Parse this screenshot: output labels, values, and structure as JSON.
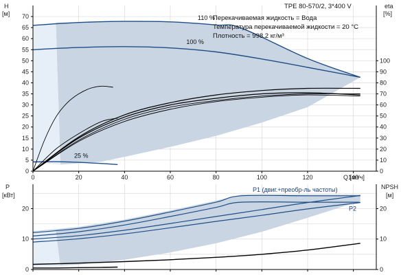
{
  "header": {
    "model": "TPE 80-570/2, 3*400 V",
    "info": [
      "Перекачиваемая жидкость = Вода",
      "Температура перекачиваемой жидкости = 20 °C",
      "Плотность = 998.2 кг/м³"
    ]
  },
  "colors": {
    "envelope": "#c9d5e3",
    "envelope_light": "#e6eef8",
    "pump_curve": "#1f4e86",
    "system_curve": "#000000",
    "grid": "#d9d9d9"
  },
  "chart_data": [
    {
      "type": "line",
      "title": "",
      "xlabel": "Q [м³/ч]",
      "ylabel_left": [
        "H",
        "[м]"
      ],
      "ylabel_right": [
        "eta",
        "[%]"
      ],
      "xlim": [
        0,
        150
      ],
      "ylim": [
        0,
        75
      ],
      "y2lim": [
        0,
        150
      ],
      "grid": true,
      "x_ticks": [
        "0",
        "20",
        "40",
        "60",
        "80",
        "100",
        "120",
        "140"
      ],
      "y_ticks": [
        "0",
        "5",
        "10",
        "15",
        "20",
        "25",
        "30",
        "35",
        "40",
        "45",
        "50",
        "55",
        "60",
        "65",
        "70"
      ],
      "y2_ticks": [
        "0",
        "10",
        "20",
        "30",
        "40",
        "50",
        "60",
        "70",
        "80",
        "90",
        "100"
      ],
      "annotations": [
        {
          "text": "110 %",
          "x": 72,
          "y": 68.5
        },
        {
          "text": "100 %",
          "x": 67,
          "y": 57.5
        },
        {
          "text": "25 %",
          "x": 18,
          "y": 6
        }
      ],
      "series": [
        {
          "role": "pump_curve",
          "x": [
            0,
            20,
            40,
            60,
            80,
            91,
            120,
            143
          ],
          "y": [
            66,
            67.3,
            67.8,
            67.6,
            66.2,
            64.8,
            51,
            42.5
          ]
        },
        {
          "role": "pump_curve",
          "x": [
            0,
            20,
            40,
            60,
            80,
            100,
            120,
            143
          ],
          "y": [
            55,
            56,
            56.4,
            55.8,
            54,
            50.8,
            47,
            42.5
          ]
        },
        {
          "role": "pump_curve",
          "x": [
            0,
            10,
            20,
            30,
            37
          ],
          "y": [
            4.2,
            4.3,
            4.0,
            3.5,
            3.0
          ]
        },
        {
          "role": "efficiency",
          "x": [
            0,
            5,
            10,
            15,
            20,
            25,
            30,
            35
          ],
          "y": [
            0,
            28,
            49,
            62,
            70,
            75,
            77,
            76
          ]
        },
        {
          "role": "efficiency",
          "x": [
            0,
            10,
            20,
            30,
            37
          ],
          "y": [
            0,
            20,
            34,
            45,
            48
          ]
        },
        {
          "role": "efficiency",
          "x": [
            0,
            20,
            40,
            60,
            80,
            100,
            120,
            143
          ],
          "y": [
            0,
            31,
            51,
            62,
            69,
            73,
            75,
            75
          ]
        },
        {
          "role": "efficiency",
          "x": [
            0,
            20,
            40,
            60,
            80,
            100,
            120,
            143
          ],
          "y": [
            0,
            30,
            49,
            60,
            66,
            70,
            71,
            69
          ]
        },
        {
          "role": "efficiency",
          "x": [
            0,
            20,
            40,
            60,
            80,
            100,
            120,
            143
          ],
          "y": [
            0,
            28,
            47,
            58,
            64,
            68,
            70,
            70
          ]
        },
        {
          "role": "efficiency",
          "x": [
            0,
            20,
            40,
            60,
            80,
            100,
            120,
            143
          ],
          "y": [
            0,
            27,
            45,
            56,
            63,
            67,
            69,
            68
          ]
        }
      ]
    },
    {
      "type": "line",
      "title": "",
      "xlabel": "",
      "ylabel_left": [
        "P",
        "[кВт]"
      ],
      "ylabel_right": [
        "NPSH",
        "[м]"
      ],
      "xlim": [
        0,
        150
      ],
      "ylim": [
        0,
        28
      ],
      "grid": true,
      "y_ticks": [
        "0",
        "10",
        "20"
      ],
      "y2_ticks": [
        "0",
        "10",
        "20"
      ],
      "annotations": [
        {
          "text": "P1 (двиг.+преобр-ль частоты)",
          "x": 96,
          "y": 25.5
        },
        {
          "text": "P2",
          "x": 138,
          "y": 19.3
        }
      ],
      "series": [
        {
          "role": "power",
          "x": [
            0,
            20,
            40,
            60,
            80,
            91,
            120,
            143
          ],
          "y": [
            12.1,
            13.5,
            15.9,
            18.9,
            22.1,
            24.2,
            24.2,
            24.2
          ]
        },
        {
          "role": "power",
          "x": [
            0,
            20,
            40,
            60,
            80,
            91,
            120,
            143
          ],
          "y": [
            11,
            12.4,
            14.6,
            17.4,
            20.4,
            22.1,
            22.1,
            22.1
          ]
        },
        {
          "role": "power",
          "x": [
            0,
            20,
            40,
            60,
            80,
            100,
            120,
            143
          ],
          "y": [
            10,
            11.1,
            12.9,
            15.1,
            17.4,
            19.7,
            22,
            24.3
          ]
        },
        {
          "role": "power",
          "x": [
            0,
            20,
            40,
            60,
            80,
            100,
            120,
            143
          ],
          "y": [
            9,
            10.1,
            11.7,
            13.7,
            15.8,
            17.8,
            19.9,
            22
          ]
        },
        {
          "role": "npsh",
          "x": [
            0,
            20,
            40,
            60,
            80,
            100,
            120,
            143
          ],
          "y": [
            1.7,
            2.1,
            2.6,
            3.2,
            4.0,
            5.0,
            6.4,
            8.6
          ]
        },
        {
          "role": "npsh",
          "x": [
            0,
            10,
            20,
            30,
            37
          ],
          "y": [
            0.5,
            0.5,
            0.6,
            0.7,
            0.8
          ]
        }
      ]
    }
  ]
}
